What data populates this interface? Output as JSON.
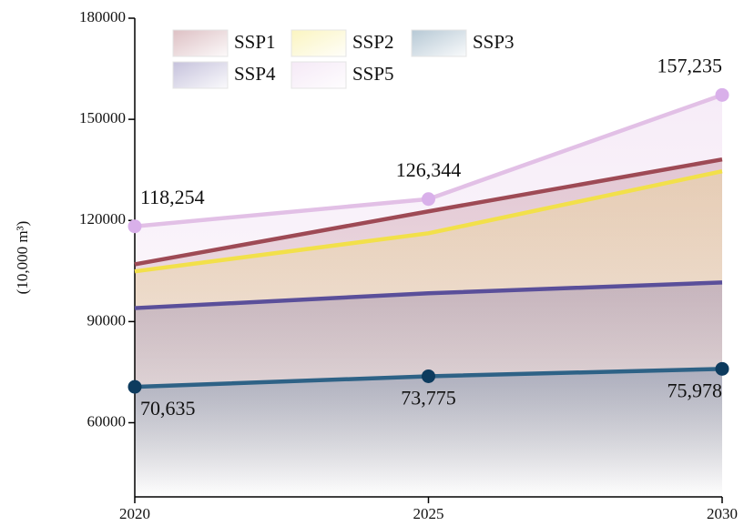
{
  "chart_data": {
    "type": "line",
    "y_label": "(10,000 m³)",
    "x": [
      2020,
      2025,
      2030
    ],
    "xlim": [
      2020,
      2030
    ],
    "xticks": [
      2020,
      2025,
      2030
    ],
    "ylim": [
      38000,
      180000
    ],
    "yticks": [
      60000,
      90000,
      120000,
      150000,
      180000
    ],
    "series": [
      {
        "name": "SSP1",
        "color": "#9e4a55",
        "values": [
          107000,
          122700,
          138100
        ]
      },
      {
        "name": "SSP2",
        "color": "#f2e04a",
        "values": [
          104900,
          116200,
          134600
        ]
      },
      {
        "name": "SSP3",
        "color": "#2e6286",
        "marker_color": "#0d3b5e",
        "markers": true,
        "values": [
          70635,
          73775,
          75978
        ],
        "value_labels": [
          "70,635",
          "73,775",
          "75,978"
        ]
      },
      {
        "name": "SSP4",
        "color": "#5a4f9a",
        "values": [
          94000,
          98400,
          101600
        ]
      },
      {
        "name": "SSP5",
        "color": "#e2c0e6",
        "marker_color": "#d9b0ea",
        "markers": true,
        "values": [
          118254,
          126344,
          157235
        ],
        "value_labels": [
          "118,254",
          "126,344",
          "157,235"
        ]
      }
    ]
  }
}
